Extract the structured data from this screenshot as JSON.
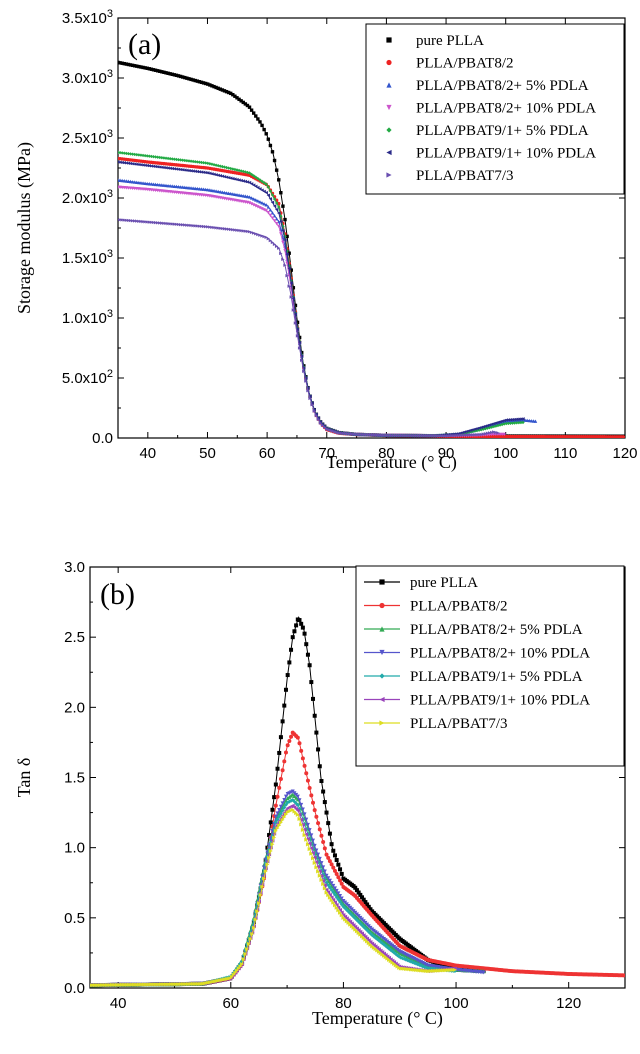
{
  "chart_data": [
    {
      "type": "line",
      "panel_label": "(a)",
      "xlabel": "Temperature (° C)",
      "ylabel": "Storage modulus (MPa)",
      "xlim": [
        35,
        120
      ],
      "ylim": [
        0,
        3500
      ],
      "xticks": [
        40,
        50,
        60,
        70,
        80,
        90,
        100,
        110,
        120
      ],
      "xtick_labels": [
        "40",
        "50",
        "60",
        "70",
        "80",
        "90",
        "100",
        "110",
        "120"
      ],
      "yticks": [
        0,
        500,
        1000,
        1500,
        2000,
        2500,
        3000,
        3500
      ],
      "ytick_labels": [
        "0.0",
        "5.0x10²",
        "1.0x10³",
        "1.5x10³",
        "2.0x10³",
        "2.5x10³",
        "3.0x10³",
        "3.5x10³"
      ],
      "legend_position": "top-right",
      "series": [
        {
          "name": "pure PLLA",
          "color": "#000000",
          "marker": "square",
          "x": [
            35,
            40,
            45,
            50,
            54,
            57,
            59,
            60,
            61,
            62,
            63,
            64,
            65,
            66,
            67,
            68,
            69,
            70,
            72,
            75,
            80,
            90,
            100,
            120
          ],
          "y": [
            3130,
            3080,
            3020,
            2950,
            2870,
            2760,
            2620,
            2520,
            2370,
            2140,
            1820,
            1420,
            1000,
            640,
            380,
            220,
            130,
            80,
            45,
            30,
            22,
            18,
            16,
            15
          ]
        },
        {
          "name": "PLLA/PBAT8/2",
          "color": "#ee2222",
          "marker": "circle",
          "x": [
            35,
            40,
            50,
            57,
            60,
            62,
            63,
            64,
            65,
            66,
            67,
            68,
            69,
            70,
            72,
            75,
            80,
            90,
            100,
            120
          ],
          "y": [
            2330,
            2300,
            2250,
            2190,
            2110,
            1950,
            1700,
            1350,
            950,
            620,
            370,
            210,
            120,
            70,
            40,
            28,
            20,
            15,
            12,
            10
          ]
        },
        {
          "name": "PLLA/PBAT8/2+ 5% PDLA",
          "color": "#3355cc",
          "marker": "triangle-up",
          "x": [
            35,
            40,
            50,
            57,
            60,
            62,
            63,
            64,
            65,
            66,
            67,
            68,
            69,
            70,
            72,
            75,
            80,
            88,
            92,
            96,
            100,
            103,
            105
          ],
          "y": [
            2150,
            2120,
            2070,
            2010,
            1940,
            1800,
            1600,
            1290,
            930,
            620,
            380,
            220,
            130,
            80,
            45,
            30,
            22,
            20,
            30,
            80,
            140,
            150,
            140
          ]
        },
        {
          "name": "PLLA/PBAT8/2+ 10% PDLA",
          "color": "#cc55cc",
          "marker": "triangle-down",
          "x": [
            35,
            40,
            50,
            57,
            60,
            62,
            63,
            64,
            65,
            66,
            67,
            68,
            69,
            70,
            72,
            75,
            80,
            90,
            95,
            98,
            100
          ],
          "y": [
            2090,
            2070,
            2020,
            1960,
            1890,
            1760,
            1560,
            1260,
            910,
            610,
            370,
            210,
            120,
            75,
            42,
            30,
            22,
            18,
            20,
            30,
            30
          ]
        },
        {
          "name": "PLLA/PBAT9/1+ 5% PDLA",
          "color": "#22aa44",
          "marker": "diamond",
          "x": [
            35,
            40,
            50,
            57,
            60,
            62,
            63,
            64,
            65,
            66,
            67,
            68,
            69,
            70,
            72,
            75,
            80,
            88,
            92,
            96,
            100,
            103
          ],
          "y": [
            2380,
            2350,
            2290,
            2210,
            2110,
            1920,
            1680,
            1330,
            950,
            630,
            380,
            220,
            130,
            80,
            45,
            30,
            22,
            20,
            30,
            70,
            120,
            130
          ]
        },
        {
          "name": "PLLA/PBAT9/1+ 10% PDLA",
          "color": "#2a2a88",
          "marker": "triangle-left",
          "x": [
            35,
            40,
            50,
            57,
            60,
            62,
            63,
            64,
            65,
            66,
            67,
            68,
            69,
            70,
            72,
            75,
            80,
            88,
            92,
            96,
            100,
            103
          ],
          "y": [
            2300,
            2270,
            2210,
            2130,
            2040,
            1870,
            1650,
            1310,
            940,
            620,
            380,
            220,
            130,
            80,
            45,
            30,
            22,
            20,
            35,
            90,
            150,
            160
          ]
        },
        {
          "name": "PLLA/PBAT7/3",
          "color": "#6a4fb0",
          "marker": "triangle-right",
          "x": [
            35,
            40,
            50,
            57,
            60,
            62,
            63,
            64,
            65,
            66,
            67,
            68,
            69,
            70,
            72,
            75,
            80,
            90,
            96,
            98,
            99
          ],
          "y": [
            1820,
            1800,
            1760,
            1720,
            1670,
            1580,
            1440,
            1190,
            880,
            590,
            360,
            210,
            120,
            75,
            42,
            30,
            22,
            18,
            30,
            50,
            40
          ]
        }
      ]
    },
    {
      "type": "line",
      "panel_label": "(b)",
      "xlabel": "Temperature (° C)",
      "ylabel": "Tan δ",
      "xlim": [
        35,
        130
      ],
      "ylim": [
        0,
        3.0
      ],
      "xticks": [
        40,
        60,
        80,
        100,
        120
      ],
      "xtick_labels": [
        "40",
        "60",
        "80",
        "100",
        "120"
      ],
      "yticks": [
        0,
        0.5,
        1.0,
        1.5,
        2.0,
        2.5,
        3.0
      ],
      "ytick_labels": [
        "0.0",
        "0.5",
        "1.0",
        "1.5",
        "2.0",
        "2.5",
        "3.0"
      ],
      "legend_position": "top-right",
      "series": [
        {
          "name": "pure PLLA",
          "color": "#000000",
          "marker": "square",
          "x": [
            35,
            55,
            60,
            62,
            64,
            66,
            68,
            70,
            71,
            72,
            73,
            74,
            75,
            76,
            78,
            80,
            82,
            85,
            90,
            95,
            100,
            105
          ],
          "y": [
            0.02,
            0.03,
            0.07,
            0.18,
            0.45,
            0.85,
            1.45,
            2.2,
            2.5,
            2.64,
            2.55,
            2.3,
            1.9,
            1.5,
            1.0,
            0.78,
            0.72,
            0.55,
            0.35,
            0.2,
            0.13,
            0.12
          ]
        },
        {
          "name": "PLLA/PBAT8/2",
          "color": "#ee3333",
          "marker": "circle",
          "x": [
            35,
            55,
            60,
            62,
            64,
            66,
            68,
            70,
            71,
            72,
            73,
            75,
            77,
            80,
            82,
            85,
            90,
            95,
            100,
            110,
            120,
            130
          ],
          "y": [
            0.02,
            0.03,
            0.07,
            0.17,
            0.42,
            0.8,
            1.3,
            1.72,
            1.82,
            1.78,
            1.6,
            1.25,
            0.95,
            0.72,
            0.66,
            0.52,
            0.3,
            0.2,
            0.16,
            0.12,
            0.1,
            0.09
          ]
        },
        {
          "name": "PLLA/PBAT8/2+ 5% PDLA",
          "color": "#33aa55",
          "marker": "triangle-up",
          "x": [
            35,
            55,
            60,
            62,
            64,
            66,
            68,
            70,
            71,
            72,
            73,
            75,
            77,
            80,
            85,
            90,
            95,
            100,
            105
          ],
          "y": [
            0.02,
            0.03,
            0.08,
            0.2,
            0.48,
            0.9,
            1.2,
            1.35,
            1.38,
            1.34,
            1.22,
            0.98,
            0.78,
            0.6,
            0.4,
            0.25,
            0.16,
            0.13,
            0.12
          ]
        },
        {
          "name": "PLLA/PBAT8/2+ 10% PDLA",
          "color": "#5555cc",
          "marker": "triangle-down",
          "x": [
            35,
            55,
            60,
            62,
            64,
            66,
            68,
            70,
            71,
            72,
            73,
            75,
            77,
            80,
            85,
            90,
            95,
            100,
            105
          ],
          "y": [
            0.02,
            0.03,
            0.07,
            0.18,
            0.45,
            0.88,
            1.22,
            1.38,
            1.4,
            1.36,
            1.25,
            1.0,
            0.8,
            0.62,
            0.42,
            0.26,
            0.16,
            0.13,
            0.11
          ]
        },
        {
          "name": "PLLA/PBAT9/1+ 5% PDLA",
          "color": "#22aaaa",
          "marker": "diamond",
          "x": [
            35,
            55,
            60,
            62,
            64,
            66,
            68,
            70,
            71,
            72,
            73,
            75,
            77,
            80,
            85,
            90,
            95,
            100
          ],
          "y": [
            0.02,
            0.03,
            0.08,
            0.19,
            0.46,
            0.86,
            1.18,
            1.32,
            1.34,
            1.3,
            1.18,
            0.95,
            0.75,
            0.58,
            0.38,
            0.22,
            0.14,
            0.12
          ]
        },
        {
          "name": "PLLA/PBAT9/1+ 10% PDLA",
          "color": "#9944bb",
          "marker": "triangle-left",
          "x": [
            35,
            55,
            60,
            62,
            64,
            66,
            68,
            70,
            71,
            72,
            73,
            75,
            77,
            80,
            85,
            90,
            95,
            100
          ],
          "y": [
            0.02,
            0.03,
            0.07,
            0.17,
            0.42,
            0.82,
            1.15,
            1.28,
            1.3,
            1.26,
            1.14,
            0.92,
            0.7,
            0.52,
            0.32,
            0.15,
            0.12,
            0.14
          ]
        },
        {
          "name": "PLLA/PBAT7/3",
          "color": "#dddd22",
          "marker": "triangle-right",
          "x": [
            35,
            55,
            60,
            62,
            64,
            66,
            68,
            70,
            71,
            72,
            73,
            75,
            77,
            80,
            85,
            90,
            95,
            100
          ],
          "y": [
            0.02,
            0.03,
            0.07,
            0.17,
            0.41,
            0.8,
            1.12,
            1.25,
            1.27,
            1.23,
            1.1,
            0.88,
            0.68,
            0.5,
            0.3,
            0.14,
            0.12,
            0.13
          ]
        }
      ]
    }
  ]
}
